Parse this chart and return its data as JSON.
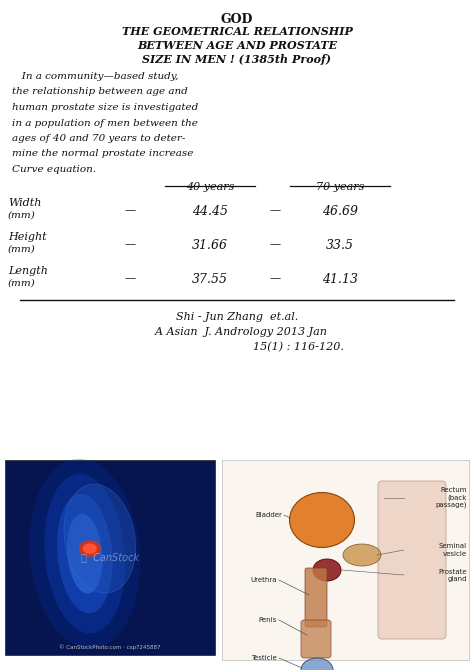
{
  "bg_color": "#ffffff",
  "hc": "#111111",
  "lc": "#111111",
  "title_god": "GOD",
  "title_lines": [
    "THE GEOMETRICAL RELATIONSHIP",
    "BETWEEN AGE AND PROSTATE",
    "SIZE IN MEN ! (1385th Proof)"
  ],
  "body_lines": [
    "   In a community—based study,",
    "the relationship between age and",
    "human prostate size is investigated",
    "in a population of men between the",
    "ages of 40 and 70 years to deter-",
    "mine the normal prostate increase",
    "Curve equation."
  ],
  "col_40": "40 years",
  "col_70": "70 years",
  "row_labels": [
    "Width\n(mm)",
    "Height\n(mm)",
    "Length\n(mm)"
  ],
  "row_val40": [
    "44.45",
    "31.66",
    "37.55"
  ],
  "row_val70": [
    "46.69",
    "33.5",
    "41.13"
  ],
  "ref1": "Shi - Jun Zhang  et.al.",
  "ref2": "  A Asian  J. Andrology 2013 Jan",
  "ref3": "                  15(1) : 116-120.",
  "fig_w": 4.74,
  "fig_h": 6.7,
  "dpi": 100
}
